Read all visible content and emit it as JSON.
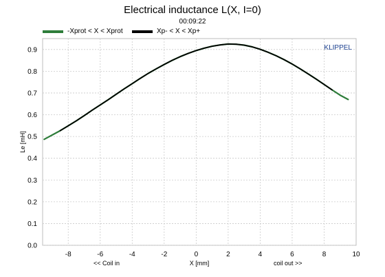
{
  "chart_data": {
    "type": "line",
    "title": "Electrical inductance L(X, I=0)",
    "subtitle": "00:09:22",
    "xlabel": "X [mm]",
    "ylabel": "Le [mH]",
    "x_left_note": "<< Coil in",
    "x_right_note": "coil out >>",
    "brand": "KLIPPEL",
    "xlim": [
      -9.6,
      10
    ],
    "ylim": [
      0,
      0.95
    ],
    "xticks": [
      -8,
      -6,
      -4,
      -2,
      0,
      2,
      4,
      6,
      8,
      10
    ],
    "yticks": [
      0.0,
      0.1,
      0.2,
      0.3,
      0.4,
      0.5,
      0.6,
      0.7,
      0.8,
      0.9
    ],
    "grid": true,
    "legend_position": "top",
    "series": [
      {
        "name": "-Xprot < X < Xprot",
        "color": "#2e7d3a",
        "x": [
          -9.5,
          -9.0,
          -8.5,
          -8.0,
          -7.5,
          -7.0,
          -6.5,
          -6.0,
          -5.5,
          -5.0,
          -4.5,
          -4.0,
          -3.5,
          -3.0,
          -2.5,
          -2.0,
          -1.5,
          -1.0,
          -0.5,
          0.0,
          0.5,
          1.0,
          1.5,
          2.0,
          2.5,
          3.0,
          3.5,
          4.0,
          4.5,
          5.0,
          5.5,
          6.0,
          6.5,
          7.0,
          7.5,
          8.0,
          8.5,
          9.0,
          9.5
        ],
        "y": [
          0.487,
          0.507,
          0.527,
          0.549,
          0.572,
          0.596,
          0.621,
          0.645,
          0.669,
          0.694,
          0.719,
          0.743,
          0.767,
          0.79,
          0.811,
          0.831,
          0.85,
          0.867,
          0.882,
          0.895,
          0.906,
          0.915,
          0.921,
          0.925,
          0.924,
          0.92,
          0.912,
          0.901,
          0.887,
          0.871,
          0.853,
          0.833,
          0.811,
          0.788,
          0.764,
          0.739,
          0.714,
          0.69,
          0.67
        ]
      },
      {
        "name": "Xp- < X < Xp+",
        "color": "#000000",
        "x": [
          -8.5,
          -8.0,
          -7.5,
          -7.0,
          -6.5,
          -6.0,
          -5.5,
          -5.0,
          -4.5,
          -4.0,
          -3.5,
          -3.0,
          -2.5,
          -2.0,
          -1.5,
          -1.0,
          -0.5,
          0.0,
          0.5,
          1.0,
          1.5,
          2.0,
          2.5,
          3.0,
          3.5,
          4.0,
          4.5,
          5.0,
          5.5,
          6.0,
          6.5,
          7.0,
          7.5,
          8.0,
          8.5
        ],
        "y": [
          0.527,
          0.549,
          0.572,
          0.596,
          0.621,
          0.645,
          0.669,
          0.694,
          0.719,
          0.743,
          0.767,
          0.79,
          0.811,
          0.831,
          0.85,
          0.867,
          0.882,
          0.895,
          0.906,
          0.915,
          0.921,
          0.925,
          0.924,
          0.92,
          0.912,
          0.901,
          0.887,
          0.871,
          0.853,
          0.833,
          0.811,
          0.788,
          0.764,
          0.739,
          0.714
        ]
      }
    ]
  }
}
